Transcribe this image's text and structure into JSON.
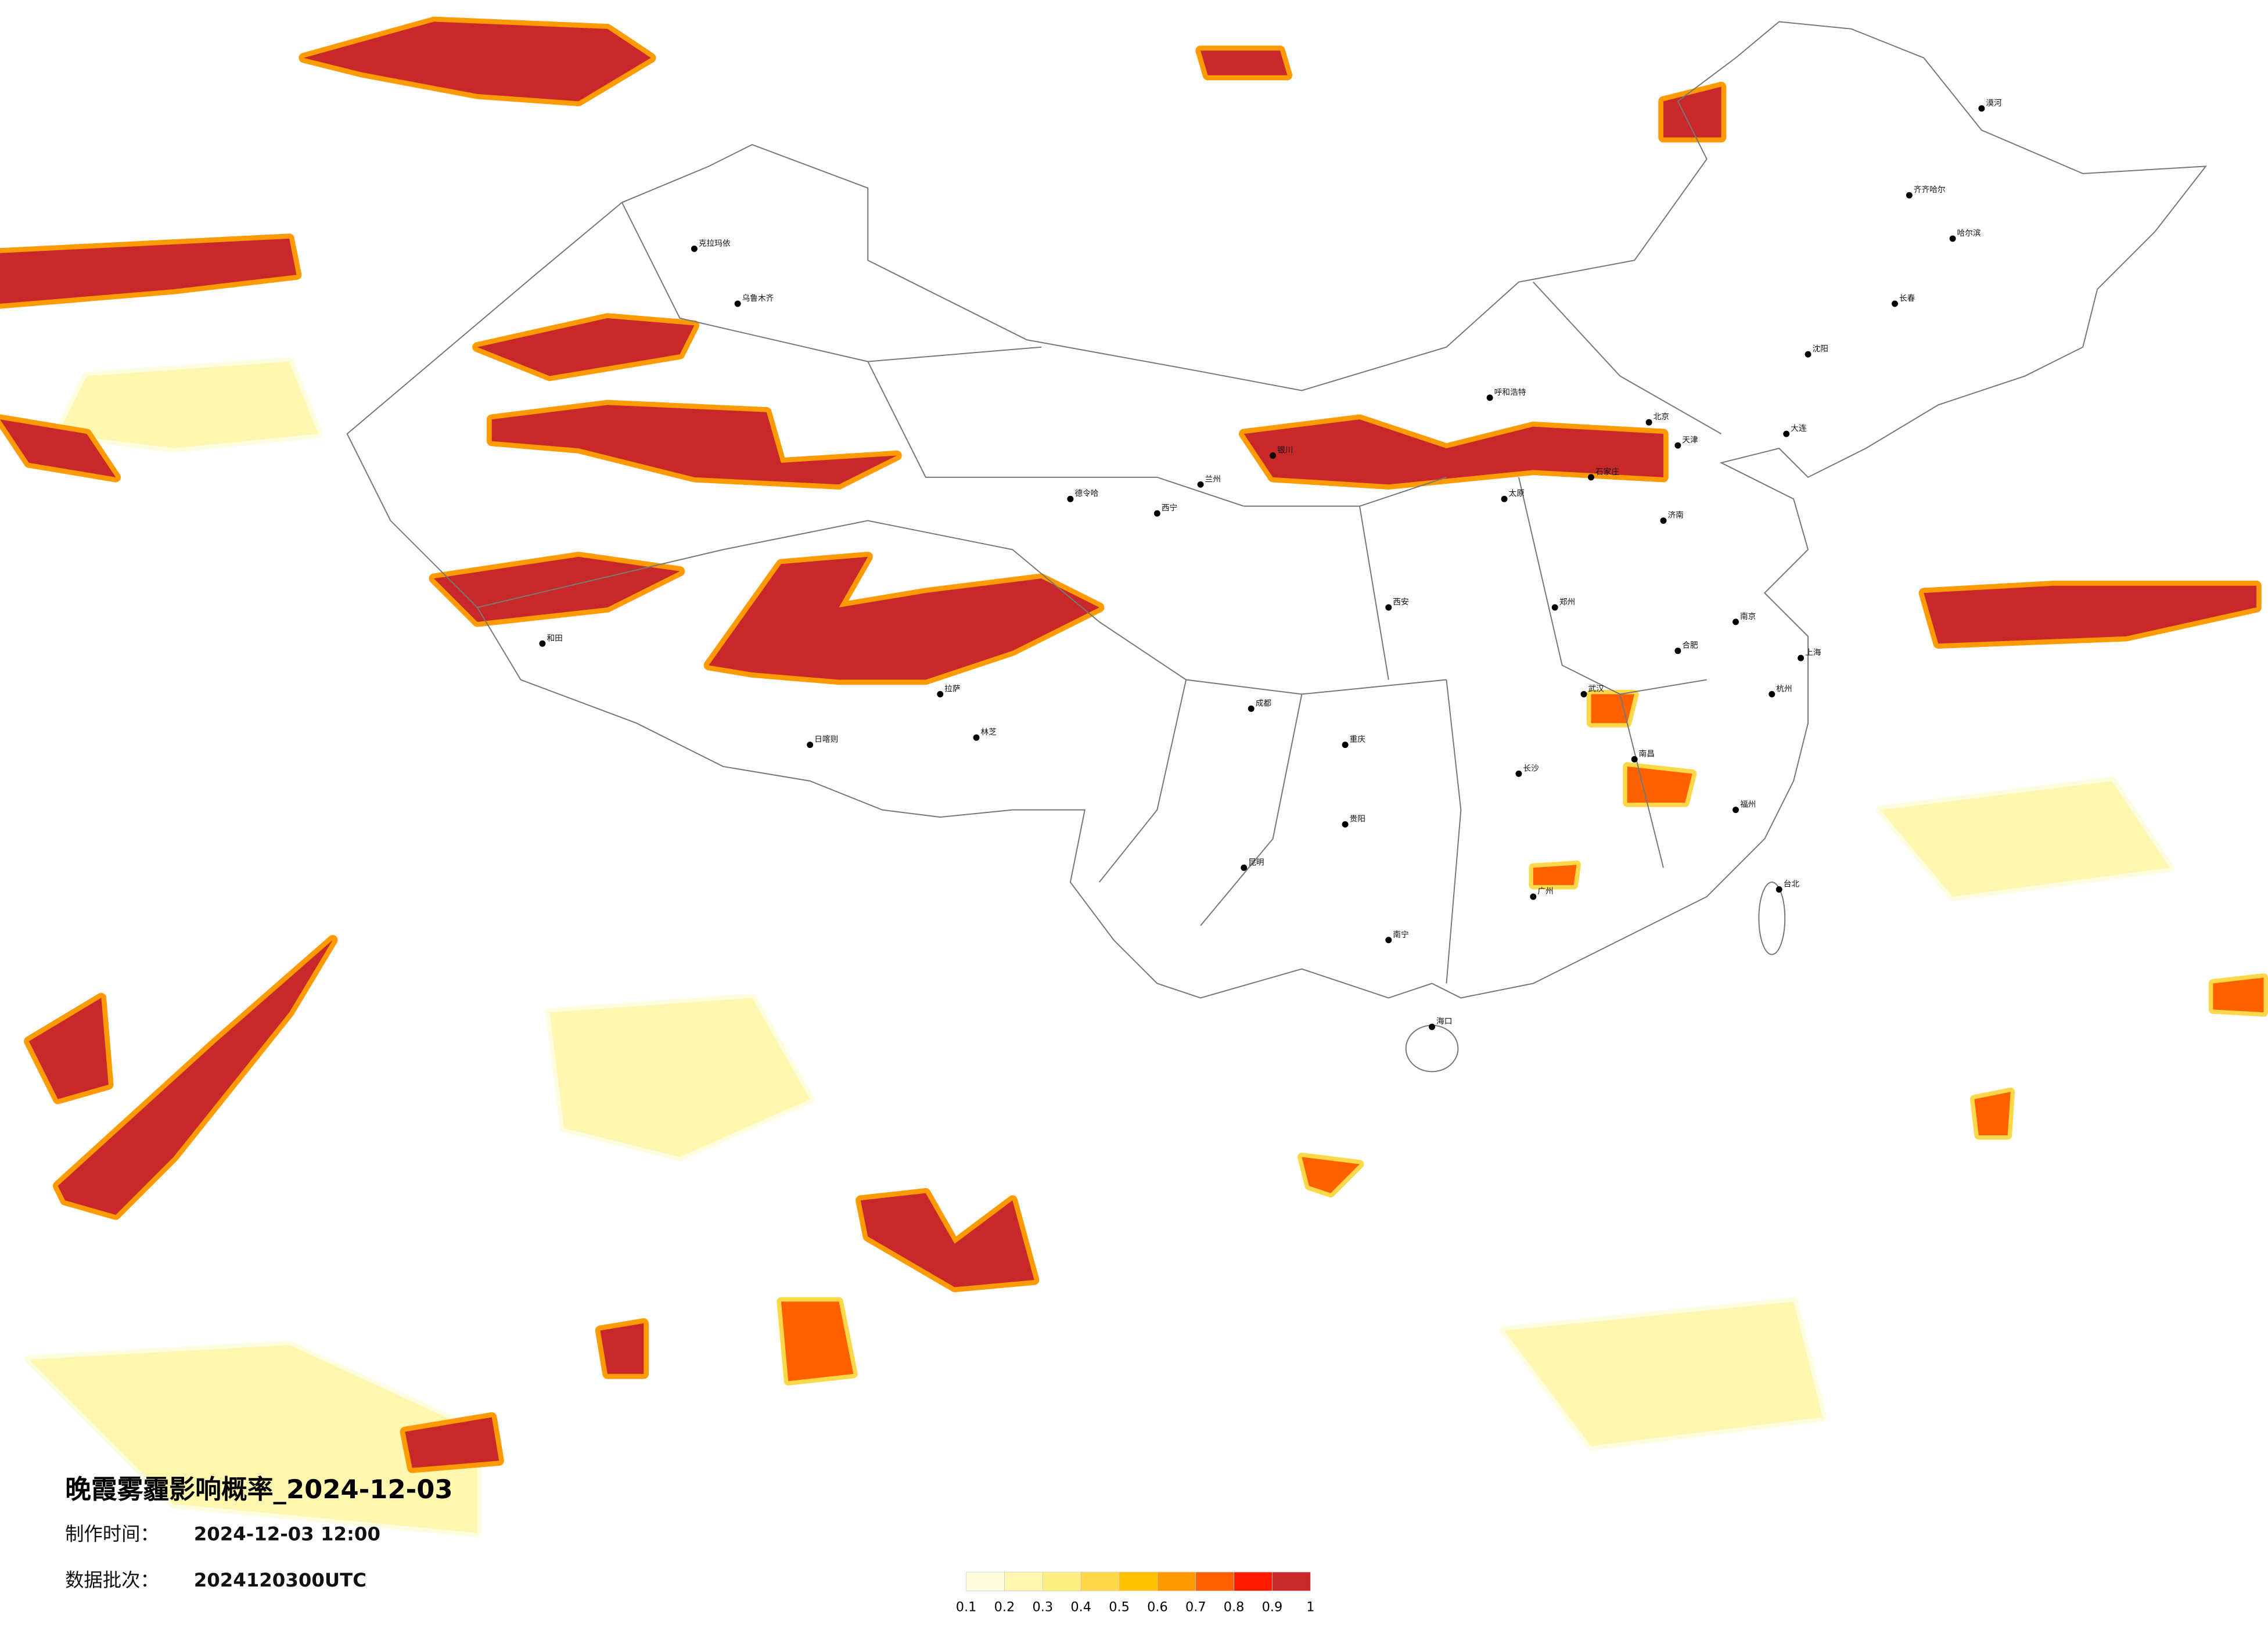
{
  "title": "晚霞雾霾影响概率_2024-12-03",
  "info": [
    {
      "label": "制作时间：",
      "value": "2024-12-03 12:00"
    },
    {
      "label": "数据批次：",
      "value": "2024120300UTC"
    }
  ],
  "legend": {
    "ticks": [
      0.1,
      0.2,
      0.3,
      0.4,
      0.5,
      0.6,
      0.7,
      0.8,
      0.9,
      1
    ],
    "colors": [
      "#fffde0",
      "#fff6b0",
      "#ffee80",
      "#ffd84a",
      "#ffc000",
      "#ff9a00",
      "#ff6000",
      "#ff1a00",
      "#c8282a"
    ]
  },
  "cities": [
    "北京",
    "天津",
    "石家庄",
    "太原",
    "呼和浩特",
    "沈阳",
    "长春",
    "哈尔滨",
    "济南",
    "郑州",
    "西安",
    "兰州",
    "西宁",
    "银川",
    "乌鲁木齐",
    "拉萨",
    "成都",
    "重庆",
    "贵阳",
    "昆明",
    "南宁",
    "广州",
    "长沙",
    "武汉",
    "南昌",
    "合肥",
    "南京",
    "上海",
    "杭州",
    "福州",
    "海口",
    "台北",
    "克拉玛依",
    "和田",
    "日喀则",
    "林芝",
    "德令哈",
    "漠河",
    "齐齐哈尔",
    "大连"
  ]
}
